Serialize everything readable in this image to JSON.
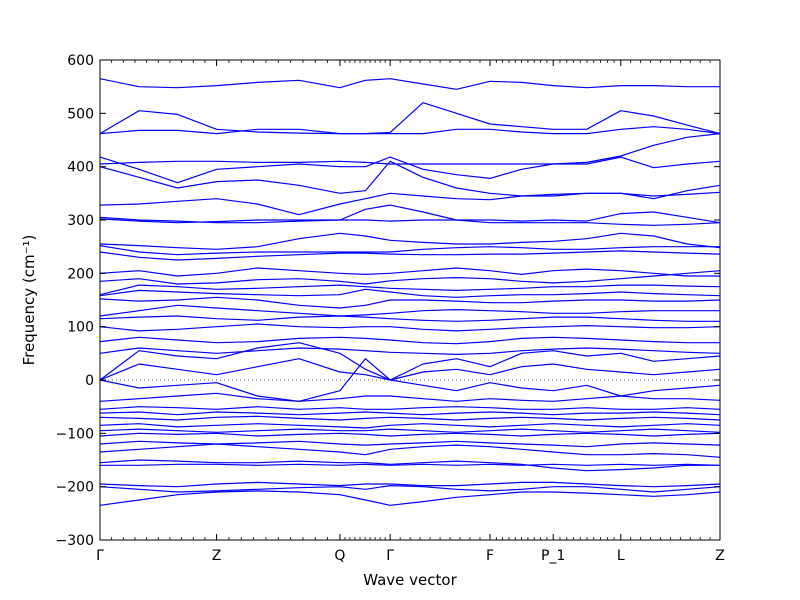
{
  "chart_data": {
    "type": "line",
    "title": "",
    "xlabel": "Wave vector",
    "ylabel": "Frequency (cm⁻¹)",
    "ylim": [
      -300,
      600
    ],
    "yticks": [
      -300,
      -200,
      -100,
      0,
      100,
      200,
      300,
      400,
      500,
      600
    ],
    "ytick_labels": [
      "−300",
      "−200",
      "−100",
      "0",
      "100",
      "200",
      "300",
      "400",
      "500",
      "600"
    ],
    "xlim": [
      0,
      1
    ],
    "kpoints": [
      {
        "label": "Γ",
        "x": 0.0
      },
      {
        "label": "Z",
        "x": 0.188
      },
      {
        "label": "Q",
        "x": 0.387
      },
      {
        "label": "Γ",
        "x": 0.468
      },
      {
        "label": "F",
        "x": 0.629
      },
      {
        "label": "P_1",
        "x": 0.731
      },
      {
        "label": "L",
        "x": 0.84
      },
      {
        "label": "Z",
        "x": 1.0
      }
    ],
    "zero_line": true,
    "line_color": "#0000ff",
    "x_samples": [
      0.0,
      0.063,
      0.125,
      0.188,
      0.254,
      0.321,
      0.387,
      0.428,
      0.468,
      0.521,
      0.575,
      0.629,
      0.68,
      0.731,
      0.785,
      0.84,
      0.893,
      0.947,
      1.0
    ],
    "series": [
      {
        "values": [
          565,
          550,
          548,
          552,
          558,
          562,
          548,
          562,
          565,
          555,
          545,
          560,
          558,
          552,
          548,
          552,
          552,
          550,
          550
        ]
      },
      {
        "values": [
          462,
          505,
          498,
          470,
          465,
          463,
          462,
          462,
          464,
          520,
          500,
          480,
          475,
          470,
          470,
          505,
          495,
          478,
          462
        ]
      },
      {
        "values": [
          462,
          468,
          468,
          462,
          470,
          470,
          462,
          462,
          462,
          462,
          470,
          470,
          465,
          462,
          462,
          470,
          475,
          470,
          462
        ]
      },
      {
        "values": [
          418,
          395,
          370,
          395,
          400,
          405,
          400,
          400,
          418,
          395,
          385,
          378,
          395,
          405,
          408,
          420,
          440,
          455,
          462
        ]
      },
      {
        "values": [
          405,
          408,
          410,
          410,
          408,
          408,
          410,
          408,
          405,
          405,
          405,
          405,
          405,
          405,
          405,
          418,
          398,
          405,
          410
        ]
      },
      {
        "values": [
          400,
          380,
          360,
          372,
          375,
          365,
          350,
          355,
          410,
          380,
          360,
          350,
          345,
          345,
          350,
          350,
          340,
          355,
          365
        ]
      },
      {
        "values": [
          328,
          330,
          335,
          340,
          330,
          310,
          330,
          340,
          350,
          345,
          340,
          338,
          345,
          348,
          350,
          350,
          345,
          348,
          352
        ]
      },
      {
        "values": [
          305,
          300,
          298,
          295,
          295,
          298,
          300,
          300,
          298,
          300,
          300,
          300,
          298,
          300,
          298,
          312,
          315,
          305,
          295
        ]
      },
      {
        "values": [
          302,
          298,
          295,
          297,
          300,
          300,
          300,
          320,
          328,
          315,
          300,
          295,
          295,
          295,
          295,
          292,
          290,
          292,
          295
        ]
      },
      {
        "values": [
          255,
          252,
          248,
          245,
          250,
          265,
          275,
          270,
          262,
          258,
          255,
          255,
          258,
          260,
          265,
          275,
          270,
          255,
          248
        ]
      },
      {
        "values": [
          252,
          240,
          235,
          238,
          240,
          240,
          240,
          240,
          240,
          245,
          248,
          250,
          248,
          245,
          245,
          248,
          250,
          250,
          250
        ]
      },
      {
        "values": [
          240,
          230,
          225,
          228,
          232,
          235,
          238,
          238,
          236,
          235,
          235,
          236,
          236,
          238,
          240,
          242,
          240,
          238,
          236
        ]
      },
      {
        "values": [
          200,
          205,
          195,
          200,
          210,
          205,
          200,
          198,
          200,
          205,
          210,
          205,
          198,
          205,
          208,
          205,
          200,
          195,
          195
        ]
      },
      {
        "values": [
          185,
          190,
          180,
          182,
          188,
          190,
          185,
          180,
          186,
          190,
          192,
          190,
          185,
          182,
          185,
          190,
          195,
          200,
          205
        ]
      },
      {
        "values": [
          160,
          178,
          175,
          170,
          172,
          175,
          178,
          175,
          172,
          170,
          168,
          170,
          172,
          175,
          175,
          178,
          178,
          176,
          175
        ]
      },
      {
        "values": [
          158,
          168,
          165,
          162,
          160,
          158,
          160,
          170,
          165,
          158,
          155,
          158,
          160,
          160,
          162,
          165,
          162,
          160,
          158
        ]
      },
      {
        "values": [
          152,
          148,
          150,
          155,
          150,
          140,
          135,
          140,
          150,
          150,
          148,
          145,
          145,
          148,
          150,
          150,
          148,
          148,
          150
        ]
      },
      {
        "values": [
          120,
          130,
          140,
          135,
          130,
          125,
          120,
          122,
          125,
          130,
          132,
          130,
          128,
          125,
          125,
          128,
          130,
          130,
          130
        ]
      },
      {
        "values": [
          115,
          118,
          120,
          115,
          112,
          118,
          120,
          118,
          115,
          112,
          110,
          112,
          115,
          118,
          118,
          115,
          112,
          110,
          110
        ]
      },
      {
        "values": [
          100,
          92,
          95,
          100,
          105,
          100,
          98,
          100,
          100,
          95,
          92,
          95,
          98,
          100,
          102,
          100,
          98,
          98,
          100
        ]
      },
      {
        "values": [
          72,
          80,
          75,
          70,
          72,
          78,
          80,
          78,
          75,
          70,
          68,
          72,
          78,
          80,
          78,
          75,
          72,
          70,
          70
        ]
      },
      {
        "values": [
          50,
          60,
          55,
          50,
          55,
          60,
          58,
          55,
          52,
          50,
          48,
          50,
          55,
          58,
          60,
          58,
          55,
          52,
          50
        ]
      },
      {
        "values": [
          0,
          55,
          45,
          40,
          60,
          70,
          50,
          20,
          0,
          30,
          40,
          25,
          50,
          55,
          45,
          50,
          35,
          40,
          45
        ]
      },
      {
        "values": [
          0,
          30,
          20,
          10,
          25,
          40,
          15,
          10,
          0,
          15,
          20,
          10,
          25,
          30,
          20,
          15,
          10,
          15,
          20
        ]
      },
      {
        "values": [
          0,
          -15,
          -10,
          -5,
          -30,
          -40,
          -20,
          40,
          0,
          -10,
          -20,
          -5,
          -15,
          -20,
          -10,
          -30,
          -20,
          -15,
          -10
        ]
      },
      {
        "values": [
          -40,
          -35,
          -30,
          -25,
          -35,
          -40,
          -35,
          -30,
          -30,
          -35,
          -40,
          -35,
          -38,
          -40,
          -35,
          -30,
          -35,
          -35,
          -38
        ]
      },
      {
        "values": [
          -55,
          -50,
          -52,
          -55,
          -50,
          -55,
          -52,
          -55,
          -55,
          -52,
          -50,
          -52,
          -55,
          -55,
          -52,
          -55,
          -55,
          -52,
          -55
        ]
      },
      {
        "values": [
          -62,
          -60,
          -65,
          -60,
          -62,
          -65,
          -62,
          -60,
          -62,
          -65,
          -62,
          -60,
          -62,
          -65,
          -62,
          -62,
          -60,
          -62,
          -65
        ]
      },
      {
        "values": [
          -70,
          -72,
          -75,
          -70,
          -68,
          -72,
          -75,
          -72,
          -70,
          -72,
          -75,
          -72,
          -70,
          -72,
          -75,
          -72,
          -70,
          -72,
          -75
        ]
      },
      {
        "values": [
          -85,
          -82,
          -88,
          -85,
          -82,
          -85,
          -88,
          -90,
          -85,
          -82,
          -85,
          -88,
          -85,
          -82,
          -85,
          -88,
          -85,
          -82,
          -85
        ]
      },
      {
        "values": [
          -95,
          -92,
          -95,
          -98,
          -95,
          -92,
          -95,
          -95,
          -92,
          -95,
          -98,
          -95,
          -92,
          -95,
          -98,
          -95,
          -92,
          -95,
          -98
        ]
      },
      {
        "values": [
          -105,
          -100,
          -102,
          -100,
          -105,
          -102,
          -100,
          -102,
          -105,
          -102,
          -100,
          -102,
          -105,
          -102,
          -100,
          -102,
          -105,
          -102,
          -100
        ]
      },
      {
        "values": [
          -120,
          -115,
          -118,
          -120,
          -118,
          -115,
          -120,
          -122,
          -120,
          -118,
          -115,
          -118,
          -120,
          -122,
          -125,
          -120,
          -118,
          -120,
          -122
        ]
      },
      {
        "values": [
          -135,
          -130,
          -125,
          -120,
          -125,
          -130,
          -135,
          -140,
          -130,
          -125,
          -122,
          -125,
          -130,
          -135,
          -140,
          -140,
          -138,
          -140,
          -145
        ]
      },
      {
        "values": [
          -155,
          -150,
          -152,
          -155,
          -155,
          -152,
          -155,
          -155,
          -158,
          -155,
          -152,
          -155,
          -158,
          -165,
          -170,
          -168,
          -165,
          -160,
          -160
        ]
      },
      {
        "values": [
          -160,
          -160,
          -158,
          -158,
          -160,
          -158,
          -160,
          -158,
          -160,
          -158,
          -160,
          -158,
          -160,
          -158,
          -160,
          -158,
          -160,
          -158,
          -160
        ]
      },
      {
        "values": [
          -195,
          -198,
          -200,
          -195,
          -192,
          -195,
          -198,
          -195,
          -195,
          -198,
          -198,
          -195,
          -192,
          -192,
          -195,
          -198,
          -200,
          -198,
          -195
        ]
      },
      {
        "values": [
          -200,
          -205,
          -210,
          -208,
          -205,
          -202,
          -200,
          -205,
          -198,
          -200,
          -205,
          -208,
          -205,
          -200,
          -200,
          -205,
          -210,
          -205,
          -200
        ]
      },
      {
        "values": [
          -235,
          -225,
          -215,
          -210,
          -208,
          -210,
          -215,
          -225,
          -235,
          -228,
          -220,
          -215,
          -210,
          -210,
          -212,
          -215,
          -218,
          -215,
          -210
        ]
      }
    ]
  }
}
